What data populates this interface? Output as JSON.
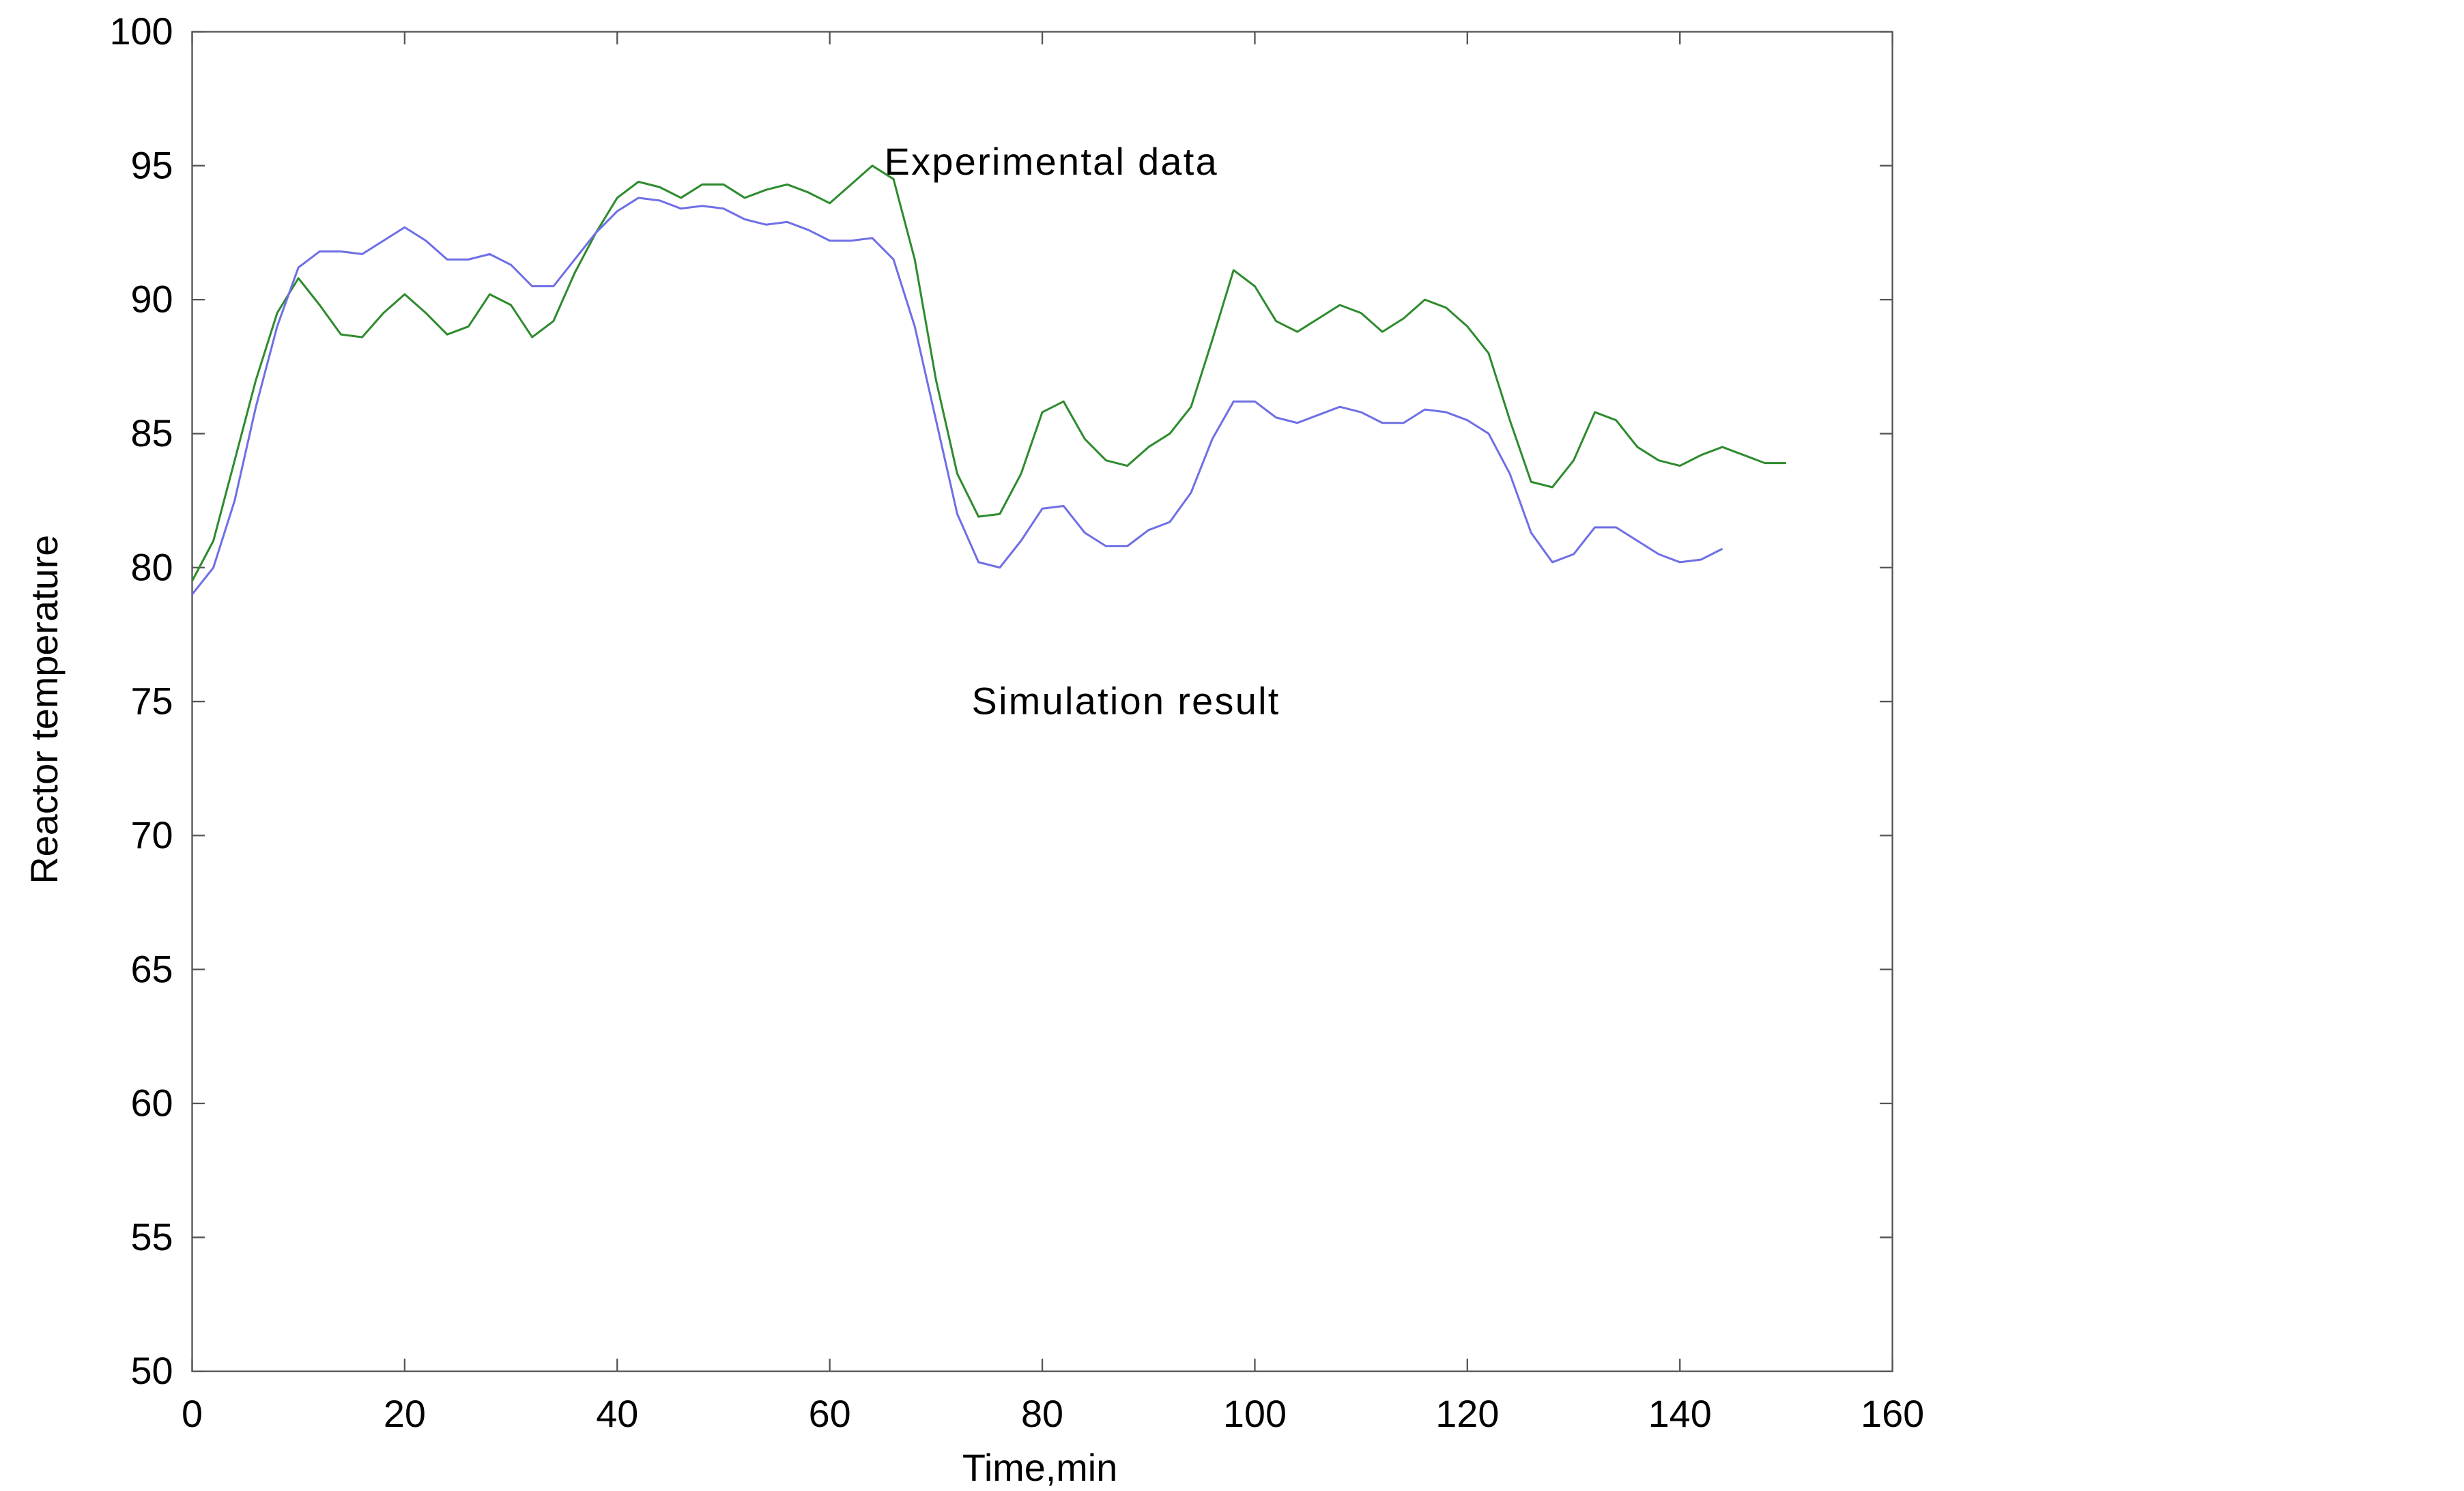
{
  "chart_data": {
    "type": "line",
    "xlabel": "Time,min",
    "ylabel": "Reactor temperature",
    "annotations": [
      "Experimental data",
      "Simulation result"
    ],
    "x": [
      0,
      2,
      4,
      6,
      8,
      10,
      12,
      14,
      16,
      18,
      20,
      22,
      24,
      26,
      28,
      30,
      32,
      34,
      36,
      38,
      40,
      42,
      44,
      46,
      48,
      50,
      52,
      54,
      56,
      58,
      60,
      62,
      64,
      66,
      68,
      70,
      72,
      74,
      76,
      78,
      80,
      82,
      84,
      86,
      88,
      90,
      92,
      94,
      96,
      98,
      100,
      102,
      104,
      106,
      108,
      110,
      112,
      114,
      116,
      118,
      120,
      122,
      124,
      126,
      128,
      130,
      132,
      134,
      136,
      138,
      140,
      142,
      144,
      146,
      148,
      150
    ],
    "series": [
      {
        "name": "Experimental data",
        "color": "#2e8b2e",
        "values": [
          79.5,
          81,
          84,
          87,
          89.5,
          90.8,
          89.8,
          88.7,
          88.6,
          89.5,
          90.2,
          89.5,
          88.7,
          89,
          90.2,
          89.8,
          88.6,
          89.2,
          91,
          92.5,
          93.8,
          94.4,
          94.2,
          93.8,
          94.3,
          94.3,
          93.8,
          94.1,
          94.3,
          94,
          93.6,
          94.3,
          95,
          94.5,
          91.5,
          87,
          83.5,
          81.9,
          82,
          83.5,
          85.8,
          86.2,
          84.8,
          84,
          83.8,
          84.5,
          85,
          86,
          88.5,
          91.1,
          90.5,
          89.2,
          88.8,
          89.3,
          89.8,
          89.5,
          88.8,
          89.3,
          90,
          89.7,
          89,
          88,
          85.5,
          83.2,
          83,
          84,
          85.8,
          85.5,
          84.5,
          84,
          83.8,
          84.2,
          84.5,
          84.2,
          83.9,
          83.9
        ]
      },
      {
        "name": "Simulation result",
        "color": "#6f6fe6",
        "values": [
          79,
          80,
          82.5,
          86,
          89,
          91.2,
          91.8,
          91.8,
          91.7,
          92.2,
          92.7,
          92.2,
          91.5,
          91.5,
          91.7,
          91.3,
          90.5,
          90.5,
          91.5,
          92.5,
          93.3,
          93.8,
          93.7,
          93.4,
          93.5,
          93.4,
          93,
          92.8,
          92.9,
          92.6,
          92.2,
          92.2,
          92.3,
          91.5,
          89,
          85.5,
          82,
          80.2,
          80,
          81,
          82.2,
          82.3,
          81.3,
          80.8,
          80.8,
          81.4,
          81.7,
          82.8,
          84.8,
          86.2,
          86.2,
          85.6,
          85.4,
          85.7,
          86,
          85.8,
          85.4,
          85.4,
          85.9,
          85.8,
          85.5,
          85,
          83.5,
          81.3,
          80.2,
          80.5,
          81.5,
          81.5,
          81,
          80.5,
          80.2,
          80.3,
          80.7,
          null,
          null,
          null
        ]
      }
    ],
    "xlim": [
      0,
      160
    ],
    "xticks": [
      0,
      20,
      40,
      60,
      80,
      100,
      120,
      140,
      160
    ],
    "ylim": [
      50,
      100
    ],
    "yticks": [
      50,
      55,
      60,
      65,
      70,
      75,
      80,
      85,
      90,
      95,
      100
    ],
    "grid": false
  }
}
